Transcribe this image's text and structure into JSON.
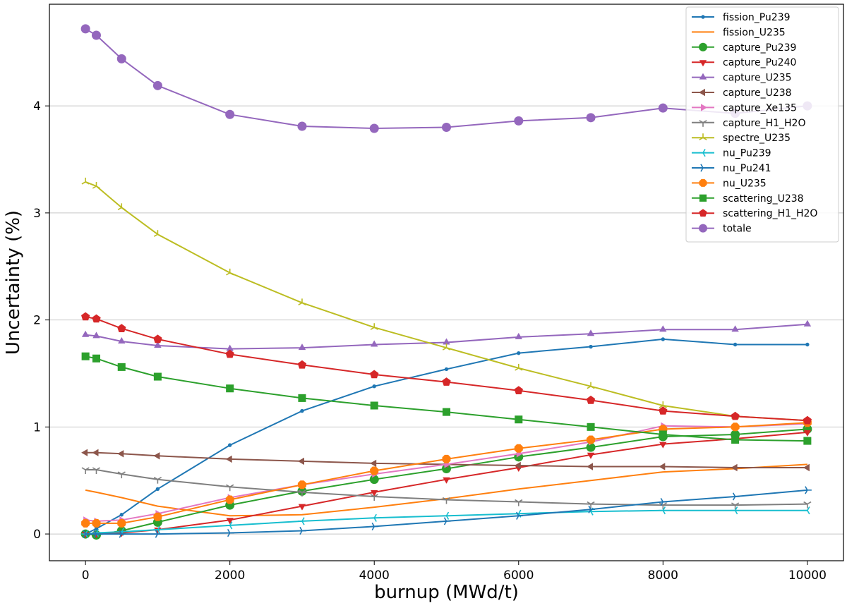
{
  "chart_data": {
    "type": "line",
    "xlabel": "burnup (MWd/t)",
    "ylabel": "Uncertainty (%)",
    "xlim": [
      -500,
      10500
    ],
    "ylim": [
      -0.25,
      4.95
    ],
    "x_ticks": [
      0,
      2000,
      4000,
      6000,
      8000,
      10000
    ],
    "y_ticks": [
      0,
      1,
      2,
      3,
      4
    ],
    "grid": "horizontal",
    "legend_position": "top-right",
    "x": [
      0,
      150,
      500,
      1000,
      2000,
      3000,
      4000,
      5000,
      6000,
      7000,
      8000,
      9000,
      10000
    ],
    "series": [
      {
        "name": "fission_Pu239",
        "color": "#1f77b4",
        "marker": "point",
        "values": [
          0.0,
          0.05,
          0.18,
          0.42,
          0.83,
          1.15,
          1.38,
          1.54,
          1.69,
          1.75,
          1.82,
          1.77,
          1.77
        ]
      },
      {
        "name": "fission_U235",
        "color": "#ff7f0e",
        "marker": "none",
        "values": [
          0.41,
          0.39,
          0.34,
          0.26,
          0.17,
          0.18,
          0.25,
          0.33,
          0.42,
          0.5,
          0.58,
          0.61,
          0.65
        ]
      },
      {
        "name": "capture_Pu239",
        "color": "#2ca02c",
        "marker": "circle",
        "values": [
          0.0,
          -0.01,
          0.03,
          0.11,
          0.27,
          0.4,
          0.51,
          0.61,
          0.72,
          0.81,
          0.91,
          0.93,
          0.98
        ]
      },
      {
        "name": "capture_Pu240",
        "color": "#d62728",
        "marker": "triangle_down",
        "values": [
          0.0,
          0.0,
          0.01,
          0.04,
          0.13,
          0.26,
          0.39,
          0.51,
          0.62,
          0.74,
          0.84,
          0.89,
          0.95
        ]
      },
      {
        "name": "capture_U235",
        "color": "#9467bd",
        "marker": "triangle_up",
        "values": [
          1.86,
          1.85,
          1.8,
          1.76,
          1.73,
          1.74,
          1.77,
          1.79,
          1.84,
          1.87,
          1.91,
          1.91,
          1.96
        ]
      },
      {
        "name": "capture_U238",
        "color": "#8c564b",
        "marker": "triangle_left",
        "values": [
          0.76,
          0.76,
          0.75,
          0.73,
          0.7,
          0.68,
          0.66,
          0.65,
          0.64,
          0.63,
          0.63,
          0.62,
          0.62
        ]
      },
      {
        "name": "capture_Xe135",
        "color": "#e377c2",
        "marker": "triangle_right",
        "values": [
          0.13,
          0.12,
          0.13,
          0.19,
          0.34,
          0.46,
          0.56,
          0.65,
          0.75,
          0.86,
          1.01,
          1.0,
          1.03
        ]
      },
      {
        "name": "capture_H1_H2O",
        "color": "#7f7f7f",
        "marker": "tri_down",
        "values": [
          0.6,
          0.6,
          0.56,
          0.51,
          0.44,
          0.39,
          0.35,
          0.32,
          0.3,
          0.28,
          0.27,
          0.27,
          0.28
        ]
      },
      {
        "name": "spectre_U235",
        "color": "#bcbd22",
        "marker": "tri_up",
        "values": [
          3.29,
          3.25,
          3.05,
          2.8,
          2.44,
          2.16,
          1.93,
          1.74,
          1.55,
          1.38,
          1.2,
          1.1,
          1.06
        ]
      },
      {
        "name": "nu_Pu239",
        "color": "#17becf",
        "marker": "tri_left",
        "values": [
          0.0,
          0.01,
          0.02,
          0.04,
          0.08,
          0.12,
          0.15,
          0.17,
          0.19,
          0.21,
          0.22,
          0.22,
          0.22
        ]
      },
      {
        "name": "nu_Pu241",
        "color": "#1f77b4",
        "marker": "tri_right",
        "values": [
          0.0,
          0.0,
          0.0,
          0.0,
          0.01,
          0.03,
          0.07,
          0.12,
          0.17,
          0.23,
          0.3,
          0.35,
          0.41
        ]
      },
      {
        "name": "nu_U235",
        "color": "#ff7f0e",
        "marker": "octagon",
        "values": [
          0.1,
          0.1,
          0.1,
          0.16,
          0.32,
          0.46,
          0.59,
          0.7,
          0.8,
          0.88,
          0.98,
          1.0,
          1.04
        ]
      },
      {
        "name": "scattering_U238",
        "color": "#2ca02c",
        "marker": "square",
        "values": [
          1.66,
          1.64,
          1.56,
          1.47,
          1.36,
          1.27,
          1.2,
          1.14,
          1.07,
          1.0,
          0.93,
          0.88,
          0.87
        ]
      },
      {
        "name": "scattering_H1_H2O",
        "color": "#d62728",
        "marker": "pentagon",
        "values": [
          2.03,
          2.01,
          1.92,
          1.82,
          1.68,
          1.58,
          1.49,
          1.42,
          1.34,
          1.25,
          1.15,
          1.1,
          1.06
        ]
      },
      {
        "name": "totale",
        "color": "#9467bd",
        "marker": "circle",
        "values": [
          4.72,
          4.66,
          4.44,
          4.19,
          3.92,
          3.81,
          3.79,
          3.8,
          3.86,
          3.89,
          3.98,
          3.93,
          4.0
        ]
      }
    ]
  }
}
